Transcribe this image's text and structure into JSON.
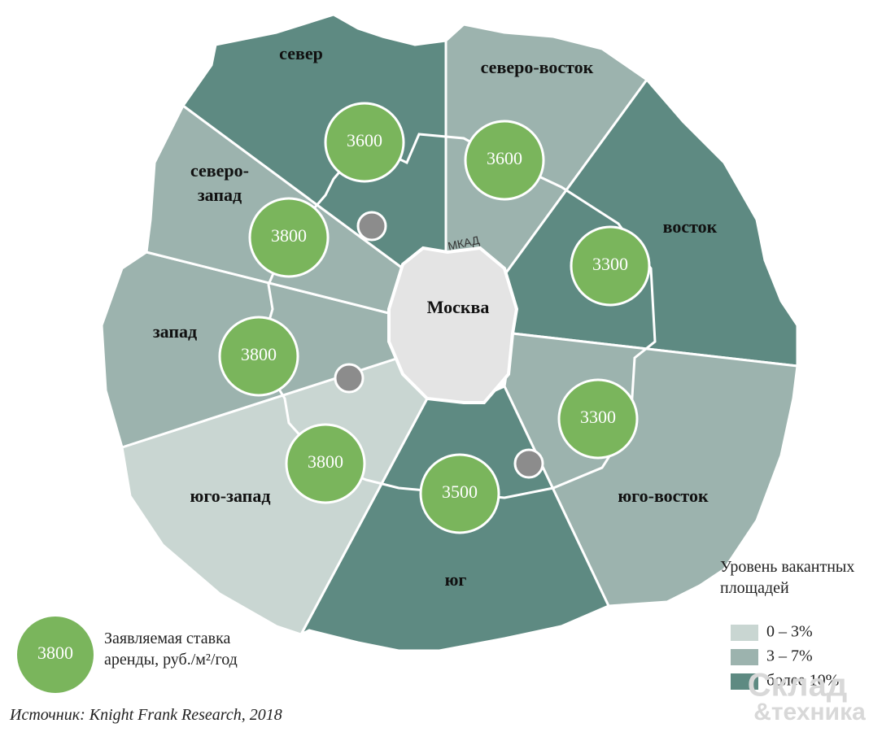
{
  "map": {
    "center_label": "Москва",
    "ring_label": "МКАД",
    "regions": [
      {
        "name": "север",
        "rate": "3600",
        "color": "#5e8a82"
      },
      {
        "name": "северо-восток",
        "rate": "3600",
        "color": "#9cb3ae"
      },
      {
        "name": "восток",
        "rate": "3300",
        "color": "#5e8a82"
      },
      {
        "name": "юго-восток",
        "rate": "3300",
        "color": "#9cb3ae"
      },
      {
        "name": "юг",
        "rate": "3500",
        "color": "#5e8a82"
      },
      {
        "name": "юго-запад",
        "rate": "3800",
        "color": "#c9d6d2"
      },
      {
        "name": "запад",
        "rate": "3800",
        "color": "#9cb3ae"
      },
      {
        "name": "северо-запад",
        "rate": "3800",
        "color": "#9cb3ae"
      }
    ],
    "rate_legend": {
      "sample": "3800",
      "text": "Заявляемая ставка аренды, руб./м²/год"
    },
    "level_legend": {
      "title": "Уровень вакантных площадей",
      "items": [
        {
          "label": "0 – 3%",
          "color": "#c9d6d2"
        },
        {
          "label": "3 – 7%",
          "color": "#9cb3ae"
        },
        {
          "label": "более 10%",
          "color": "#5e8a82"
        }
      ]
    },
    "source": "Источник: Knight Frank Research, 2018",
    "watermark": [
      "Склад",
      "&техника"
    ]
  }
}
